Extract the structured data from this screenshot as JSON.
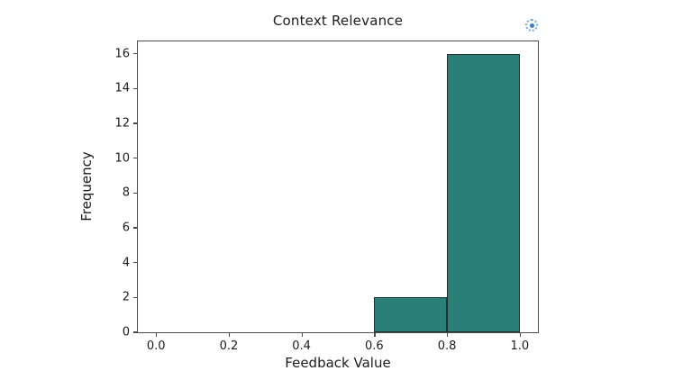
{
  "chart_data": {
    "type": "bar",
    "subtype": "histogram",
    "title": "Context Relevance",
    "xlabel": "Feedback Value",
    "ylabel": "Frequency",
    "bins": [
      {
        "x0": 0.0,
        "x1": 0.2,
        "count": 0
      },
      {
        "x0": 0.2,
        "x1": 0.4,
        "count": 0
      },
      {
        "x0": 0.4,
        "x1": 0.6,
        "count": 0
      },
      {
        "x0": 0.6,
        "x1": 0.8,
        "count": 2
      },
      {
        "x0": 0.8,
        "x1": 1.0,
        "count": 16
      }
    ],
    "x_ticks": [
      0.0,
      0.2,
      0.4,
      0.6,
      0.8,
      1.0
    ],
    "x_tick_labels": [
      "0.0",
      "0.2",
      "0.4",
      "0.6",
      "0.8",
      "1.0"
    ],
    "y_ticks": [
      0,
      2,
      4,
      6,
      8,
      10,
      12,
      14,
      16
    ],
    "y_tick_labels": [
      "0",
      "2",
      "4",
      "6",
      "8",
      "10",
      "12",
      "14",
      "16"
    ],
    "xlim": [
      -0.05,
      1.05
    ],
    "ylim": [
      0,
      16.7
    ],
    "grid": false,
    "legend": null,
    "colors": {
      "bar_fill": "#2a7f78",
      "bar_edge": "#20312f",
      "axis": "#4a4a4a",
      "text": "#1c1c1c",
      "background": "#ffffff"
    }
  },
  "icons": {
    "spinner": {
      "name": "status-spinner-icon",
      "ring_color": "#79aadc",
      "dot_color": "#3b82c4"
    }
  }
}
